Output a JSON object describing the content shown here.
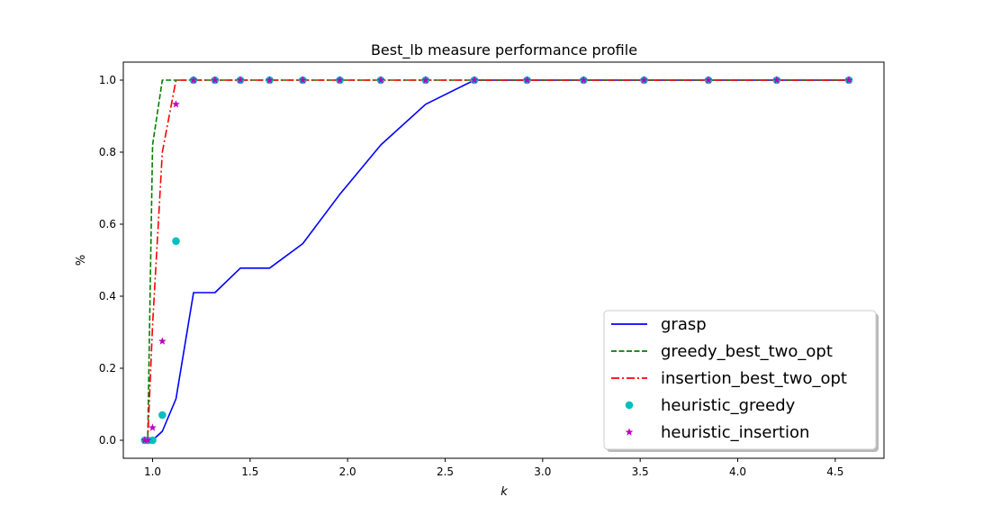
{
  "chart_data": {
    "type": "line",
    "title": "Best_lb measure performance profile",
    "xlabel": "k",
    "ylabel": "%",
    "xlim": [
      0.85,
      4.75
    ],
    "ylim": [
      -0.05,
      1.05
    ],
    "xticks": [
      "1.0",
      "1.5",
      "2.0",
      "2.5",
      "3.0",
      "3.5",
      "4.0",
      "4.5"
    ],
    "yticks": [
      "0.0",
      "0.2",
      "0.4",
      "0.6",
      "0.8",
      "1.0"
    ],
    "grid": false,
    "legend_position": "lower-right",
    "series": [
      {
        "name": "grasp",
        "style": "solid-line",
        "color": "#0000ff",
        "x": [
          0.96,
          0.975,
          1.0,
          1.05,
          1.12,
          1.21,
          1.32,
          1.45,
          1.6,
          1.77,
          1.96,
          2.17,
          2.4,
          2.65,
          2.92,
          3.21,
          3.52,
          3.85,
          4.2,
          4.57
        ],
        "y": [
          0.0,
          0.0,
          0.0,
          0.025,
          0.115,
          0.41,
          0.41,
          0.478,
          0.478,
          0.546,
          0.683,
          0.82,
          0.933,
          1.0,
          1.0,
          1.0,
          1.0,
          1.0,
          1.0,
          1.0
        ]
      },
      {
        "name": "greedy_best_two_opt",
        "style": "dashed-line",
        "color": "#008000",
        "x": [
          0.96,
          0.975,
          1.0,
          1.05,
          1.12,
          1.21,
          1.32,
          1.45,
          1.6,
          1.77,
          1.96,
          2.17,
          2.4,
          2.65,
          2.92,
          3.21,
          3.52,
          3.85,
          4.2,
          4.57
        ],
        "y": [
          0.0,
          0.0,
          0.82,
          1.0,
          1.0,
          1.0,
          1.0,
          1.0,
          1.0,
          1.0,
          1.0,
          1.0,
          1.0,
          1.0,
          1.0,
          1.0,
          1.0,
          1.0,
          1.0,
          1.0
        ]
      },
      {
        "name": "insertion_best_two_opt",
        "style": "dashdot-line",
        "color": "#ff0000",
        "x": [
          0.96,
          0.975,
          1.0,
          1.05,
          1.12,
          1.21,
          1.32,
          1.45,
          1.6,
          1.77,
          1.96,
          2.17,
          2.4,
          2.65,
          2.92,
          3.21,
          3.52,
          3.85,
          4.2,
          4.57
        ],
        "y": [
          0.0,
          0.0,
          0.32,
          0.8,
          1.0,
          1.0,
          1.0,
          1.0,
          1.0,
          1.0,
          1.0,
          1.0,
          1.0,
          1.0,
          1.0,
          1.0,
          1.0,
          1.0,
          1.0,
          1.0
        ]
      },
      {
        "name": "heuristic_greedy",
        "style": "circle-markers",
        "color": "#00bfbf",
        "x": [
          0.96,
          0.975,
          1.0,
          1.05,
          1.12,
          1.21,
          1.32,
          1.45,
          1.6,
          1.77,
          1.96,
          2.17,
          2.4,
          2.65,
          2.92,
          3.21,
          3.52,
          3.85,
          4.2,
          4.57
        ],
        "y": [
          0.0,
          0.0,
          0.0,
          0.07,
          0.553,
          1.0,
          1.0,
          1.0,
          1.0,
          1.0,
          1.0,
          1.0,
          1.0,
          1.0,
          1.0,
          1.0,
          1.0,
          1.0,
          1.0,
          1.0
        ]
      },
      {
        "name": "heuristic_insertion",
        "style": "star-markers",
        "color": "#bf00bf",
        "x": [
          0.96,
          0.975,
          1.0,
          1.05,
          1.12,
          1.21,
          1.32,
          1.45,
          1.6,
          1.77,
          1.96,
          2.17,
          2.4,
          2.65,
          2.92,
          3.21,
          3.52,
          3.85,
          4.2,
          4.57
        ],
        "y": [
          0.0,
          0.0,
          0.035,
          0.275,
          0.933,
          1.0,
          1.0,
          1.0,
          1.0,
          1.0,
          1.0,
          1.0,
          1.0,
          1.0,
          1.0,
          1.0,
          1.0,
          1.0,
          1.0,
          1.0
        ]
      }
    ]
  }
}
